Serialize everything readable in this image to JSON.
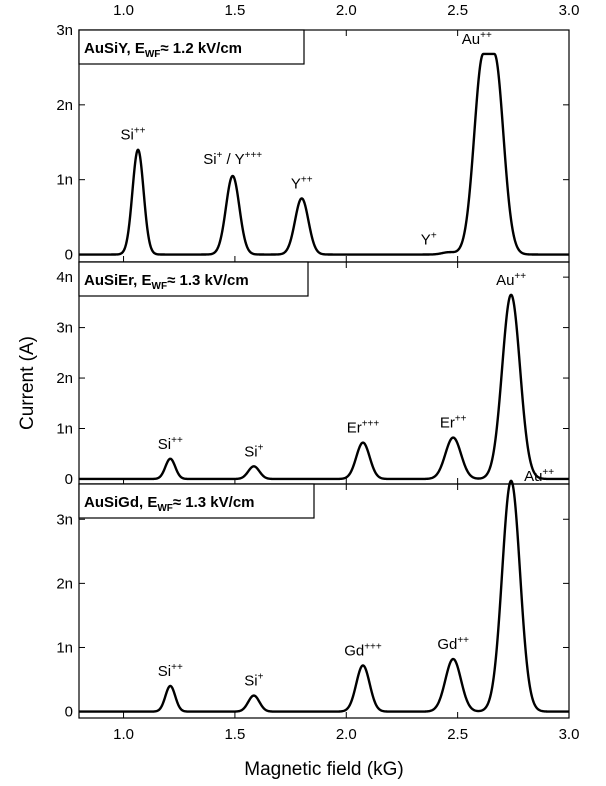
{
  "chart_data": {
    "type": "line",
    "xlabel": "Magnetic field (kG)",
    "ylabel": "Current (A)",
    "xlim": [
      0.8,
      3.0
    ],
    "x_ticks": [
      "1.0",
      "1.5",
      "2.0",
      "2.5",
      "3.0"
    ],
    "x_tick_values": [
      1.0,
      1.5,
      2.0,
      2.5,
      3.0
    ],
    "line_color": "#000000",
    "grid": false,
    "panels": [
      {
        "title_main": "AuSiY, E",
        "title_sub": "WF",
        "title_rest": "≈ 1.2 kV/cm",
        "ylim": [
          -0.1,
          3.0
        ],
        "y_ticks": [
          {
            "label": "0",
            "value": 0
          },
          {
            "label": "1n",
            "value": 1
          },
          {
            "label": "2n",
            "value": 2
          },
          {
            "label": "3n",
            "value": 3
          }
        ],
        "peaks": [
          {
            "x": 1.065,
            "height": 1.4,
            "width": 0.025,
            "label": "Si",
            "sup": "++"
          },
          {
            "x": 1.49,
            "height": 1.05,
            "width": 0.03,
            "label": "Si",
            "sup": "+",
            "label2": " / Y",
            "sup2": "+++"
          },
          {
            "x": 1.8,
            "height": 0.75,
            "width": 0.03,
            "label": "Y",
            "sup": "++"
          },
          {
            "x": 2.46,
            "height": 0.03,
            "width": 0.03,
            "label": "Y",
            "sup": "+"
          },
          {
            "x": 2.64,
            "height": 2.68,
            "width": 0.04,
            "flat": 0.025,
            "label": "Au",
            "sup": "++"
          }
        ]
      },
      {
        "title_main": "AuSiEr, E",
        "title_sub": "WF",
        "title_rest": "≈ 1.3 kV/cm",
        "ylim": [
          -0.1,
          4.3
        ],
        "y_ticks": [
          {
            "label": "0",
            "value": 0
          },
          {
            "label": "1n",
            "value": 1
          },
          {
            "label": "2n",
            "value": 2
          },
          {
            "label": "3n",
            "value": 3
          },
          {
            "label": "4n",
            "value": 4
          }
        ],
        "peaks": [
          {
            "x": 1.21,
            "height": 0.4,
            "width": 0.022,
            "label": "Si",
            "sup": "++"
          },
          {
            "x": 1.585,
            "height": 0.25,
            "width": 0.025,
            "label": "Si",
            "sup": "+"
          },
          {
            "x": 2.075,
            "height": 0.72,
            "width": 0.03,
            "label": "Er",
            "sup": "+++"
          },
          {
            "x": 2.48,
            "height": 0.82,
            "width": 0.035,
            "label": "Er",
            "sup": "++"
          },
          {
            "x": 2.74,
            "height": 3.65,
            "width": 0.04,
            "label": "Au",
            "sup": "++"
          }
        ]
      },
      {
        "title_main": "AuSiGd, E",
        "title_sub": "WF",
        "title_rest": "≈ 1.3 kV/cm",
        "ylim": [
          -0.1,
          3.55
        ],
        "y_ticks": [
          {
            "label": "0",
            "value": 0
          },
          {
            "label": "1n",
            "value": 1
          },
          {
            "label": "2n",
            "value": 2
          },
          {
            "label": "3n",
            "value": 3
          }
        ],
        "peaks": [
          {
            "x": 1.21,
            "height": 0.4,
            "width": 0.022,
            "label": "Si",
            "sup": "++"
          },
          {
            "x": 1.585,
            "height": 0.25,
            "width": 0.025,
            "label": "Si",
            "sup": "+"
          },
          {
            "x": 2.075,
            "height": 0.72,
            "width": 0.03,
            "label": "Gd",
            "sup": "+++"
          },
          {
            "x": 2.48,
            "height": 0.82,
            "width": 0.035,
            "label": "Gd",
            "sup": "++"
          },
          {
            "x": 2.74,
            "height": 3.6,
            "width": 0.04,
            "label": "Au",
            "sup": "++"
          }
        ]
      }
    ]
  }
}
